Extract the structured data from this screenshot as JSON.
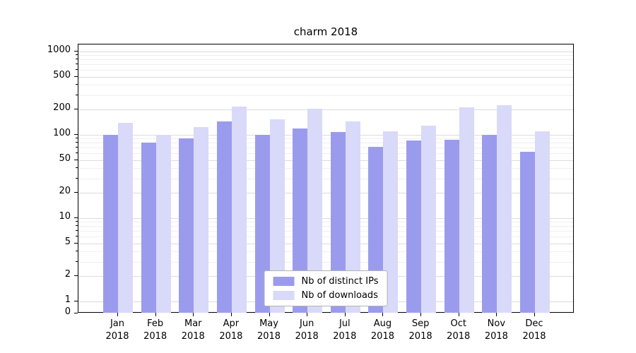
{
  "chart_data": {
    "type": "bar",
    "title": "charm 2018",
    "yscale": "symlog",
    "grid": true,
    "legend_position": "lower center",
    "ylim": [
      0,
      1000
    ],
    "yticks": [
      0,
      1,
      2,
      5,
      10,
      20,
      50,
      100,
      200,
      500,
      1000
    ],
    "minor_yticks": [
      3,
      4,
      6,
      7,
      8,
      9,
      30,
      40,
      60,
      70,
      80,
      90,
      300,
      400,
      600,
      700,
      800,
      900
    ],
    "categories": [
      "Jan\n2018",
      "Feb\n2018",
      "Mar\n2018",
      "Apr\n2018",
      "May\n2018",
      "Jun\n2018",
      "Jul\n2018",
      "Aug\n2018",
      "Sep\n2018",
      "Oct\n2018",
      "Nov\n2018",
      "Dec\n2018"
    ],
    "series": [
      {
        "name": "Nb of distinct IPs",
        "color": "#9b9bee",
        "values": [
          100,
          80,
          90,
          145,
          100,
          120,
          108,
          72,
          85,
          88,
          100,
          62
        ]
      },
      {
        "name": "Nb of downloads",
        "color": "#d9d9f9",
        "values": [
          140,
          98,
          125,
          220,
          155,
          205,
          145,
          110,
          130,
          215,
          225,
          110
        ]
      }
    ]
  }
}
